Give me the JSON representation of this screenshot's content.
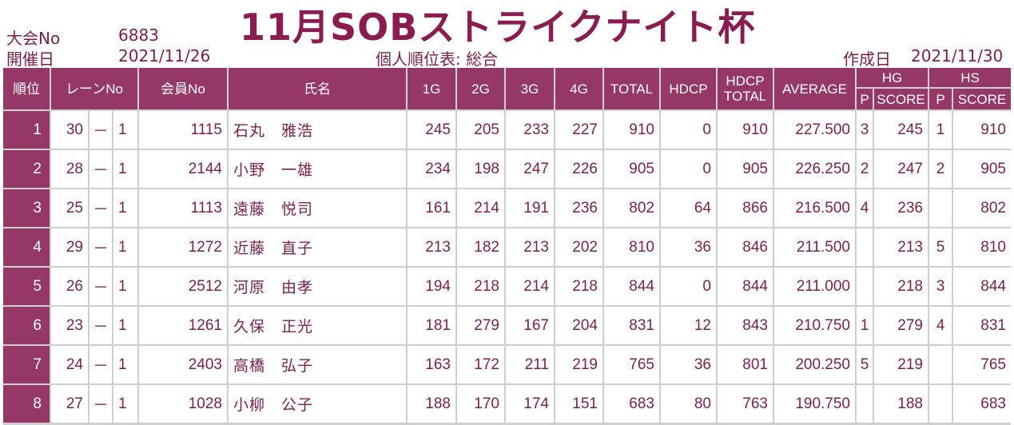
{
  "title": "11月SOBストライクナイト杯",
  "meta": {
    "tournament_label": "大会No",
    "tournament_no": "6883",
    "date_label": "開催日",
    "date": "2021/11/26",
    "report_title": "個人順位表: 総合",
    "created_label": "作成日",
    "created_date": "2021/11/30"
  },
  "headers": {
    "rank": "順位",
    "lane": "レーンNo",
    "member": "会員No",
    "name": "氏名",
    "g1": "1G",
    "g2": "2G",
    "g3": "3G",
    "g4": "4G",
    "total": "TOTAL",
    "hdcp": "HDCP",
    "hdcp_total_1": "HDCP",
    "hdcp_total_2": "TOTAL",
    "average": "AVERAGE",
    "hg": "HG",
    "hs": "HS",
    "p": "P",
    "score": "SCORE"
  },
  "rows": [
    {
      "rank": "1",
      "lane": "30",
      "dash": "－",
      "lane_sub": "1",
      "member": "1115",
      "name": "石丸　雅浩",
      "g1": "245",
      "g2": "205",
      "g3": "233",
      "g4": "227",
      "total": "910",
      "hdcp": "0",
      "hdcp_total": "910",
      "average": "227.500",
      "hg_p": "3",
      "hg_score": "245",
      "hs_p": "1",
      "hs_score": "910"
    },
    {
      "rank": "2",
      "lane": "28",
      "dash": "－",
      "lane_sub": "1",
      "member": "2144",
      "name": "小野　一雄",
      "g1": "234",
      "g2": "198",
      "g3": "247",
      "g4": "226",
      "total": "905",
      "hdcp": "0",
      "hdcp_total": "905",
      "average": "226.250",
      "hg_p": "2",
      "hg_score": "247",
      "hs_p": "2",
      "hs_score": "905"
    },
    {
      "rank": "3",
      "lane": "25",
      "dash": "－",
      "lane_sub": "1",
      "member": "1113",
      "name": "遠藤　悦司",
      "g1": "161",
      "g2": "214",
      "g3": "191",
      "g4": "236",
      "total": "802",
      "hdcp": "64",
      "hdcp_total": "866",
      "average": "216.500",
      "hg_p": "4",
      "hg_score": "236",
      "hs_p": "",
      "hs_score": "802"
    },
    {
      "rank": "4",
      "lane": "29",
      "dash": "－",
      "lane_sub": "1",
      "member": "1272",
      "name": "近藤　直子",
      "g1": "213",
      "g2": "182",
      "g3": "213",
      "g4": "202",
      "total": "810",
      "hdcp": "36",
      "hdcp_total": "846",
      "average": "211.500",
      "hg_p": "",
      "hg_score": "213",
      "hs_p": "5",
      "hs_score": "810"
    },
    {
      "rank": "5",
      "lane": "26",
      "dash": "－",
      "lane_sub": "1",
      "member": "2512",
      "name": "河原　由孝",
      "g1": "194",
      "g2": "218",
      "g3": "214",
      "g4": "218",
      "total": "844",
      "hdcp": "0",
      "hdcp_total": "844",
      "average": "211.000",
      "hg_p": "",
      "hg_score": "218",
      "hs_p": "3",
      "hs_score": "844"
    },
    {
      "rank": "6",
      "lane": "23",
      "dash": "－",
      "lane_sub": "1",
      "member": "1261",
      "name": "久保　正光",
      "g1": "181",
      "g2": "279",
      "g3": "167",
      "g4": "204",
      "total": "831",
      "hdcp": "12",
      "hdcp_total": "843",
      "average": "210.750",
      "hg_p": "1",
      "hg_score": "279",
      "hs_p": "4",
      "hs_score": "831"
    },
    {
      "rank": "7",
      "lane": "24",
      "dash": "－",
      "lane_sub": "1",
      "member": "2403",
      "name": "高橋　弘子",
      "g1": "163",
      "g2": "172",
      "g3": "211",
      "g4": "219",
      "total": "765",
      "hdcp": "36",
      "hdcp_total": "801",
      "average": "200.250",
      "hg_p": "5",
      "hg_score": "219",
      "hs_p": "",
      "hs_score": "765"
    },
    {
      "rank": "8",
      "lane": "27",
      "dash": "－",
      "lane_sub": "1",
      "member": "1028",
      "name": "小柳　公子",
      "g1": "188",
      "g2": "170",
      "g3": "174",
      "g4": "151",
      "total": "683",
      "hdcp": "80",
      "hdcp_total": "763",
      "average": "190.750",
      "hg_p": "",
      "hg_score": "188",
      "hs_p": "",
      "hs_score": "683"
    }
  ]
}
